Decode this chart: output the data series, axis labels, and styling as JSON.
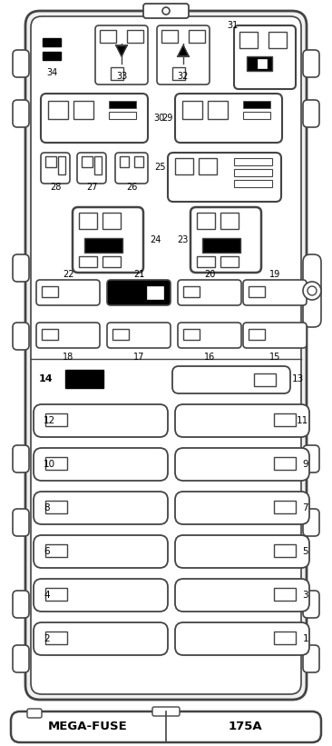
{
  "bg_color": "#ffffff",
  "line_color": "#444444",
  "fig_width": 3.66,
  "fig_height": 8.21,
  "title_left": "MEGA-FUSE",
  "title_right": "175A"
}
